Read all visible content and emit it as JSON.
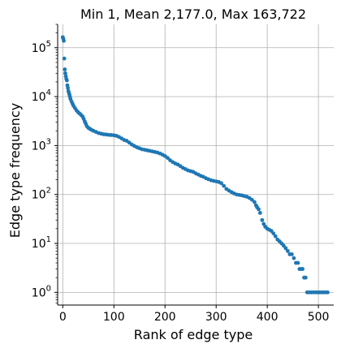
{
  "chart_data": {
    "type": "scatter",
    "title": "Min 1, Mean 2,177.0, Max 163,722",
    "xlabel": "Rank of edge type",
    "ylabel": "Edge type frequency",
    "xlim": [
      -10,
      530
    ],
    "ylim": [
      0.55,
      300000
    ],
    "yscale": "log",
    "grid": true,
    "marker_color": "#1f77b4",
    "x_ticks": [
      0,
      100,
      200,
      300,
      400,
      500
    ],
    "y_ticks": [
      {
        "value": 1,
        "base": "10",
        "exp": "0"
      },
      {
        "value": 10,
        "base": "10",
        "exp": "1"
      },
      {
        "value": 100,
        "base": "10",
        "exp": "2"
      },
      {
        "value": 1000,
        "base": "10",
        "exp": "3"
      },
      {
        "value": 10000,
        "base": "10",
        "exp": "4"
      },
      {
        "value": 100000,
        "base": "10",
        "exp": "5"
      }
    ],
    "series": [
      {
        "points": [
          [
            0,
            163722
          ],
          [
            1,
            152000
          ],
          [
            2,
            138000
          ],
          [
            3,
            60000
          ],
          [
            4,
            36000
          ],
          [
            5,
            30000
          ],
          [
            6,
            26000
          ],
          [
            7,
            23000
          ],
          [
            8,
            21500
          ],
          [
            9,
            17000
          ],
          [
            10,
            15000
          ],
          [
            11,
            13000
          ],
          [
            12,
            12000
          ],
          [
            13,
            11000
          ],
          [
            14,
            10000
          ],
          [
            15,
            9000
          ],
          [
            17,
            8000
          ],
          [
            19,
            7200
          ],
          [
            21,
            6500
          ],
          [
            24,
            5800
          ],
          [
            27,
            5200
          ],
          [
            30,
            4800
          ],
          [
            33,
            4500
          ],
          [
            36,
            4200
          ],
          [
            39,
            3900
          ],
          [
            41,
            3500
          ],
          [
            43,
            3100
          ],
          [
            45,
            2800
          ],
          [
            47,
            2500
          ],
          [
            50,
            2300
          ],
          [
            53,
            2200
          ],
          [
            56,
            2100
          ],
          [
            60,
            2000
          ],
          [
            65,
            1900
          ],
          [
            70,
            1800
          ],
          [
            75,
            1750
          ],
          [
            80,
            1700
          ],
          [
            85,
            1680
          ],
          [
            90,
            1650
          ],
          [
            95,
            1640
          ],
          [
            100,
            1620
          ],
          [
            105,
            1580
          ],
          [
            110,
            1500
          ],
          [
            115,
            1400
          ],
          [
            120,
            1300
          ],
          [
            125,
            1250
          ],
          [
            130,
            1150
          ],
          [
            135,
            1050
          ],
          [
            140,
            980
          ],
          [
            145,
            920
          ],
          [
            150,
            880
          ],
          [
            155,
            840
          ],
          [
            160,
            820
          ],
          [
            165,
            800
          ],
          [
            170,
            780
          ],
          [
            175,
            760
          ],
          [
            180,
            740
          ],
          [
            185,
            720
          ],
          [
            190,
            690
          ],
          [
            195,
            650
          ],
          [
            200,
            610
          ],
          [
            205,
            560
          ],
          [
            210,
            500
          ],
          [
            215,
            460
          ],
          [
            220,
            430
          ],
          [
            225,
            410
          ],
          [
            230,
            380
          ],
          [
            235,
            350
          ],
          [
            240,
            330
          ],
          [
            245,
            310
          ],
          [
            250,
            300
          ],
          [
            255,
            290
          ],
          [
            260,
            270
          ],
          [
            265,
            255
          ],
          [
            270,
            240
          ],
          [
            275,
            230
          ],
          [
            280,
            215
          ],
          [
            285,
            205
          ],
          [
            290,
            195
          ],
          [
            295,
            190
          ],
          [
            300,
            185
          ],
          [
            305,
            180
          ],
          [
            310,
            170
          ],
          [
            315,
            150
          ],
          [
            320,
            130
          ],
          [
            325,
            120
          ],
          [
            330,
            112
          ],
          [
            335,
            105
          ],
          [
            340,
            100
          ],
          [
            345,
            98
          ],
          [
            350,
            96
          ],
          [
            355,
            93
          ],
          [
            360,
            90
          ],
          [
            365,
            85
          ],
          [
            370,
            78
          ],
          [
            375,
            70
          ],
          [
            378,
            60
          ],
          [
            380,
            55
          ],
          [
            383,
            50
          ],
          [
            386,
            42
          ],
          [
            390,
            30
          ],
          [
            393,
            25
          ],
          [
            396,
            22
          ],
          [
            400,
            20
          ],
          [
            404,
            19
          ],
          [
            408,
            18
          ],
          [
            412,
            16
          ],
          [
            416,
            14
          ],
          [
            420,
            12
          ],
          [
            424,
            11
          ],
          [
            428,
            10
          ],
          [
            432,
            9
          ],
          [
            436,
            8
          ],
          [
            440,
            7
          ],
          [
            444,
            6
          ],
          [
            448,
            6
          ],
          [
            452,
            5
          ],
          [
            456,
            4
          ],
          [
            460,
            4
          ],
          [
            463,
            3
          ],
          [
            466,
            3
          ],
          [
            469,
            3
          ],
          [
            472,
            2
          ],
          [
            475,
            2
          ],
          [
            478,
            1
          ],
          [
            482,
            1
          ],
          [
            486,
            1
          ],
          [
            490,
            1
          ],
          [
            494,
            1
          ],
          [
            498,
            1
          ],
          [
            502,
            1
          ],
          [
            506,
            1
          ],
          [
            510,
            1
          ],
          [
            514,
            1
          ],
          [
            518,
            1
          ]
        ]
      }
    ]
  }
}
